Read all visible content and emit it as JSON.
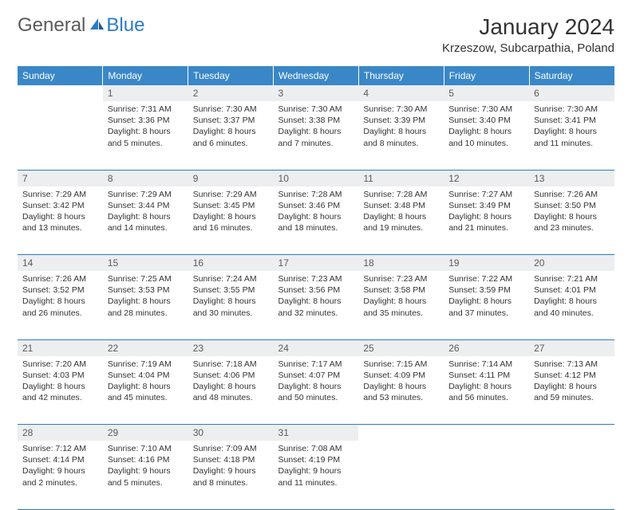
{
  "logo": {
    "text1": "General",
    "text2": "Blue",
    "color_general": "#5a5a5a",
    "color_blue": "#2b7cc4"
  },
  "title": "January 2024",
  "location": "Krzeszow, Subcarpathia, Poland",
  "header_bg": "#3a87c8",
  "header_fg": "#ffffff",
  "daynum_bg": "#eceef0",
  "border_color": "#2b7cc4",
  "fontsize_title": 28,
  "fontsize_location": 15,
  "fontsize_header": 12,
  "fontsize_cell": 10.5,
  "columns": [
    "Sunday",
    "Monday",
    "Tuesday",
    "Wednesday",
    "Thursday",
    "Friday",
    "Saturday"
  ],
  "weeks": [
    [
      null,
      {
        "n": "1",
        "sr": "Sunrise: 7:31 AM",
        "ss": "Sunset: 3:36 PM",
        "d1": "Daylight: 8 hours",
        "d2": "and 5 minutes."
      },
      {
        "n": "2",
        "sr": "Sunrise: 7:30 AM",
        "ss": "Sunset: 3:37 PM",
        "d1": "Daylight: 8 hours",
        "d2": "and 6 minutes."
      },
      {
        "n": "3",
        "sr": "Sunrise: 7:30 AM",
        "ss": "Sunset: 3:38 PM",
        "d1": "Daylight: 8 hours",
        "d2": "and 7 minutes."
      },
      {
        "n": "4",
        "sr": "Sunrise: 7:30 AM",
        "ss": "Sunset: 3:39 PM",
        "d1": "Daylight: 8 hours",
        "d2": "and 8 minutes."
      },
      {
        "n": "5",
        "sr": "Sunrise: 7:30 AM",
        "ss": "Sunset: 3:40 PM",
        "d1": "Daylight: 8 hours",
        "d2": "and 10 minutes."
      },
      {
        "n": "6",
        "sr": "Sunrise: 7:30 AM",
        "ss": "Sunset: 3:41 PM",
        "d1": "Daylight: 8 hours",
        "d2": "and 11 minutes."
      }
    ],
    [
      {
        "n": "7",
        "sr": "Sunrise: 7:29 AM",
        "ss": "Sunset: 3:42 PM",
        "d1": "Daylight: 8 hours",
        "d2": "and 13 minutes."
      },
      {
        "n": "8",
        "sr": "Sunrise: 7:29 AM",
        "ss": "Sunset: 3:44 PM",
        "d1": "Daylight: 8 hours",
        "d2": "and 14 minutes."
      },
      {
        "n": "9",
        "sr": "Sunrise: 7:29 AM",
        "ss": "Sunset: 3:45 PM",
        "d1": "Daylight: 8 hours",
        "d2": "and 16 minutes."
      },
      {
        "n": "10",
        "sr": "Sunrise: 7:28 AM",
        "ss": "Sunset: 3:46 PM",
        "d1": "Daylight: 8 hours",
        "d2": "and 18 minutes."
      },
      {
        "n": "11",
        "sr": "Sunrise: 7:28 AM",
        "ss": "Sunset: 3:48 PM",
        "d1": "Daylight: 8 hours",
        "d2": "and 19 minutes."
      },
      {
        "n": "12",
        "sr": "Sunrise: 7:27 AM",
        "ss": "Sunset: 3:49 PM",
        "d1": "Daylight: 8 hours",
        "d2": "and 21 minutes."
      },
      {
        "n": "13",
        "sr": "Sunrise: 7:26 AM",
        "ss": "Sunset: 3:50 PM",
        "d1": "Daylight: 8 hours",
        "d2": "and 23 minutes."
      }
    ],
    [
      {
        "n": "14",
        "sr": "Sunrise: 7:26 AM",
        "ss": "Sunset: 3:52 PM",
        "d1": "Daylight: 8 hours",
        "d2": "and 26 minutes."
      },
      {
        "n": "15",
        "sr": "Sunrise: 7:25 AM",
        "ss": "Sunset: 3:53 PM",
        "d1": "Daylight: 8 hours",
        "d2": "and 28 minutes."
      },
      {
        "n": "16",
        "sr": "Sunrise: 7:24 AM",
        "ss": "Sunset: 3:55 PM",
        "d1": "Daylight: 8 hours",
        "d2": "and 30 minutes."
      },
      {
        "n": "17",
        "sr": "Sunrise: 7:23 AM",
        "ss": "Sunset: 3:56 PM",
        "d1": "Daylight: 8 hours",
        "d2": "and 32 minutes."
      },
      {
        "n": "18",
        "sr": "Sunrise: 7:23 AM",
        "ss": "Sunset: 3:58 PM",
        "d1": "Daylight: 8 hours",
        "d2": "and 35 minutes."
      },
      {
        "n": "19",
        "sr": "Sunrise: 7:22 AM",
        "ss": "Sunset: 3:59 PM",
        "d1": "Daylight: 8 hours",
        "d2": "and 37 minutes."
      },
      {
        "n": "20",
        "sr": "Sunrise: 7:21 AM",
        "ss": "Sunset: 4:01 PM",
        "d1": "Daylight: 8 hours",
        "d2": "and 40 minutes."
      }
    ],
    [
      {
        "n": "21",
        "sr": "Sunrise: 7:20 AM",
        "ss": "Sunset: 4:03 PM",
        "d1": "Daylight: 8 hours",
        "d2": "and 42 minutes."
      },
      {
        "n": "22",
        "sr": "Sunrise: 7:19 AM",
        "ss": "Sunset: 4:04 PM",
        "d1": "Daylight: 8 hours",
        "d2": "and 45 minutes."
      },
      {
        "n": "23",
        "sr": "Sunrise: 7:18 AM",
        "ss": "Sunset: 4:06 PM",
        "d1": "Daylight: 8 hours",
        "d2": "and 48 minutes."
      },
      {
        "n": "24",
        "sr": "Sunrise: 7:17 AM",
        "ss": "Sunset: 4:07 PM",
        "d1": "Daylight: 8 hours",
        "d2": "and 50 minutes."
      },
      {
        "n": "25",
        "sr": "Sunrise: 7:15 AM",
        "ss": "Sunset: 4:09 PM",
        "d1": "Daylight: 8 hours",
        "d2": "and 53 minutes."
      },
      {
        "n": "26",
        "sr": "Sunrise: 7:14 AM",
        "ss": "Sunset: 4:11 PM",
        "d1": "Daylight: 8 hours",
        "d2": "and 56 minutes."
      },
      {
        "n": "27",
        "sr": "Sunrise: 7:13 AM",
        "ss": "Sunset: 4:12 PM",
        "d1": "Daylight: 8 hours",
        "d2": "and 59 minutes."
      }
    ],
    [
      {
        "n": "28",
        "sr": "Sunrise: 7:12 AM",
        "ss": "Sunset: 4:14 PM",
        "d1": "Daylight: 9 hours",
        "d2": "and 2 minutes."
      },
      {
        "n": "29",
        "sr": "Sunrise: 7:10 AM",
        "ss": "Sunset: 4:16 PM",
        "d1": "Daylight: 9 hours",
        "d2": "and 5 minutes."
      },
      {
        "n": "30",
        "sr": "Sunrise: 7:09 AM",
        "ss": "Sunset: 4:18 PM",
        "d1": "Daylight: 9 hours",
        "d2": "and 8 minutes."
      },
      {
        "n": "31",
        "sr": "Sunrise: 7:08 AM",
        "ss": "Sunset: 4:19 PM",
        "d1": "Daylight: 9 hours",
        "d2": "and 11 minutes."
      },
      null,
      null,
      null
    ]
  ]
}
